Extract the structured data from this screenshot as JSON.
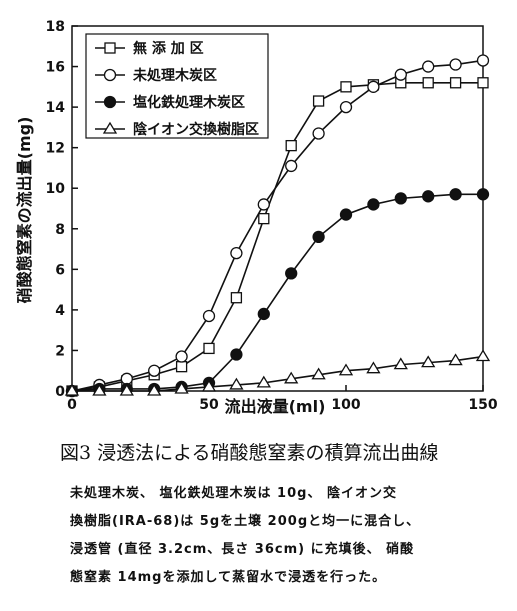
{
  "chart_data": {
    "type": "line",
    "xlabel": "流出液量(ml)",
    "ylabel": "硝酸態窒素の流出量(mg)",
    "x": [
      0,
      10,
      20,
      30,
      40,
      50,
      60,
      70,
      80,
      90,
      100,
      110,
      120,
      130,
      140,
      150
    ],
    "series": [
      {
        "name": "無 添 加 区",
        "marker": "square",
        "color": "#111",
        "values": [
          0,
          0.2,
          0.5,
          0.8,
          1.2,
          2.1,
          4.6,
          8.5,
          12.1,
          14.3,
          15.0,
          15.1,
          15.2,
          15.2,
          15.2,
          15.2
        ]
      },
      {
        "name": "未処理木炭区",
        "marker": "circle",
        "color": "#111",
        "values": [
          0,
          0.3,
          0.6,
          1.0,
          1.7,
          3.7,
          6.8,
          9.2,
          11.1,
          12.7,
          14.0,
          15.0,
          15.6,
          16.0,
          16.1,
          16.3
        ]
      },
      {
        "name": "塩化鉄処理木炭区",
        "marker": "filled-circle",
        "color": "#111",
        "values": [
          0,
          0.1,
          0.1,
          0.1,
          0.2,
          0.4,
          1.8,
          3.8,
          5.8,
          7.6,
          8.7,
          9.2,
          9.5,
          9.6,
          9.7,
          9.7
        ]
      },
      {
        "name": "陰イオン交換樹脂区",
        "marker": "triangle",
        "color": "#111",
        "values": [
          0,
          0,
          0,
          0,
          0.1,
          0.2,
          0.3,
          0.4,
          0.6,
          0.8,
          1.0,
          1.1,
          1.3,
          1.4,
          1.5,
          1.7
        ]
      }
    ],
    "xlim": [
      0,
      150
    ],
    "xticks": [
      0,
      50,
      100,
      150
    ],
    "ylim": [
      0,
      18
    ],
    "yticks": [
      0,
      2,
      4,
      6,
      8,
      10,
      12,
      14,
      16,
      18
    ]
  },
  "caption": "図3 浸透法による硝酸態窒素の積算流出曲線",
  "note_lines": [
    "未処理木炭、 塩化鉄処理木炭は 10g、 陰イオン交",
    "換樹脂(IRA-68)は 5gを土壌 200gと均一に混合し、",
    "浸透管 (直径 3.2cm、長さ 36cm) に充填後、 硝酸",
    "態窒素 14mgを添加して蒸留水で浸透を行った。"
  ]
}
